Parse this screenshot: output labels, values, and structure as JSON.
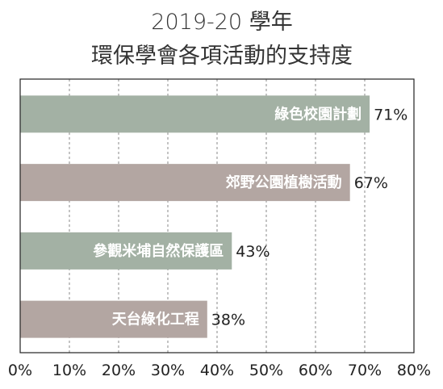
{
  "chart_data": {
    "type": "bar",
    "orientation": "horizontal",
    "title": "2019-20 學年",
    "subtitle": "環保學會各項活動的支持度",
    "categories": [
      "綠色校園計劃",
      "郊野公園植樹活動",
      "參觀米埔自然保護區",
      "天台綠化工程"
    ],
    "values": [
      71,
      67,
      43,
      38
    ],
    "value_labels": [
      "71%",
      "67%",
      "43%",
      "38%"
    ],
    "bar_colors": [
      "#a3b1a4",
      "#b3a6a2",
      "#a3b1a4",
      "#b3a6a2"
    ],
    "xlim": [
      0,
      80
    ],
    "x_ticks": [
      0,
      10,
      20,
      30,
      40,
      50,
      60,
      70,
      80
    ],
    "x_tick_labels": [
      "0%",
      "10%",
      "20%",
      "30%",
      "40%",
      "50%",
      "60%",
      "70%",
      "80%"
    ],
    "grid": "vertical dashed",
    "xlabel": "",
    "ylabel": ""
  }
}
